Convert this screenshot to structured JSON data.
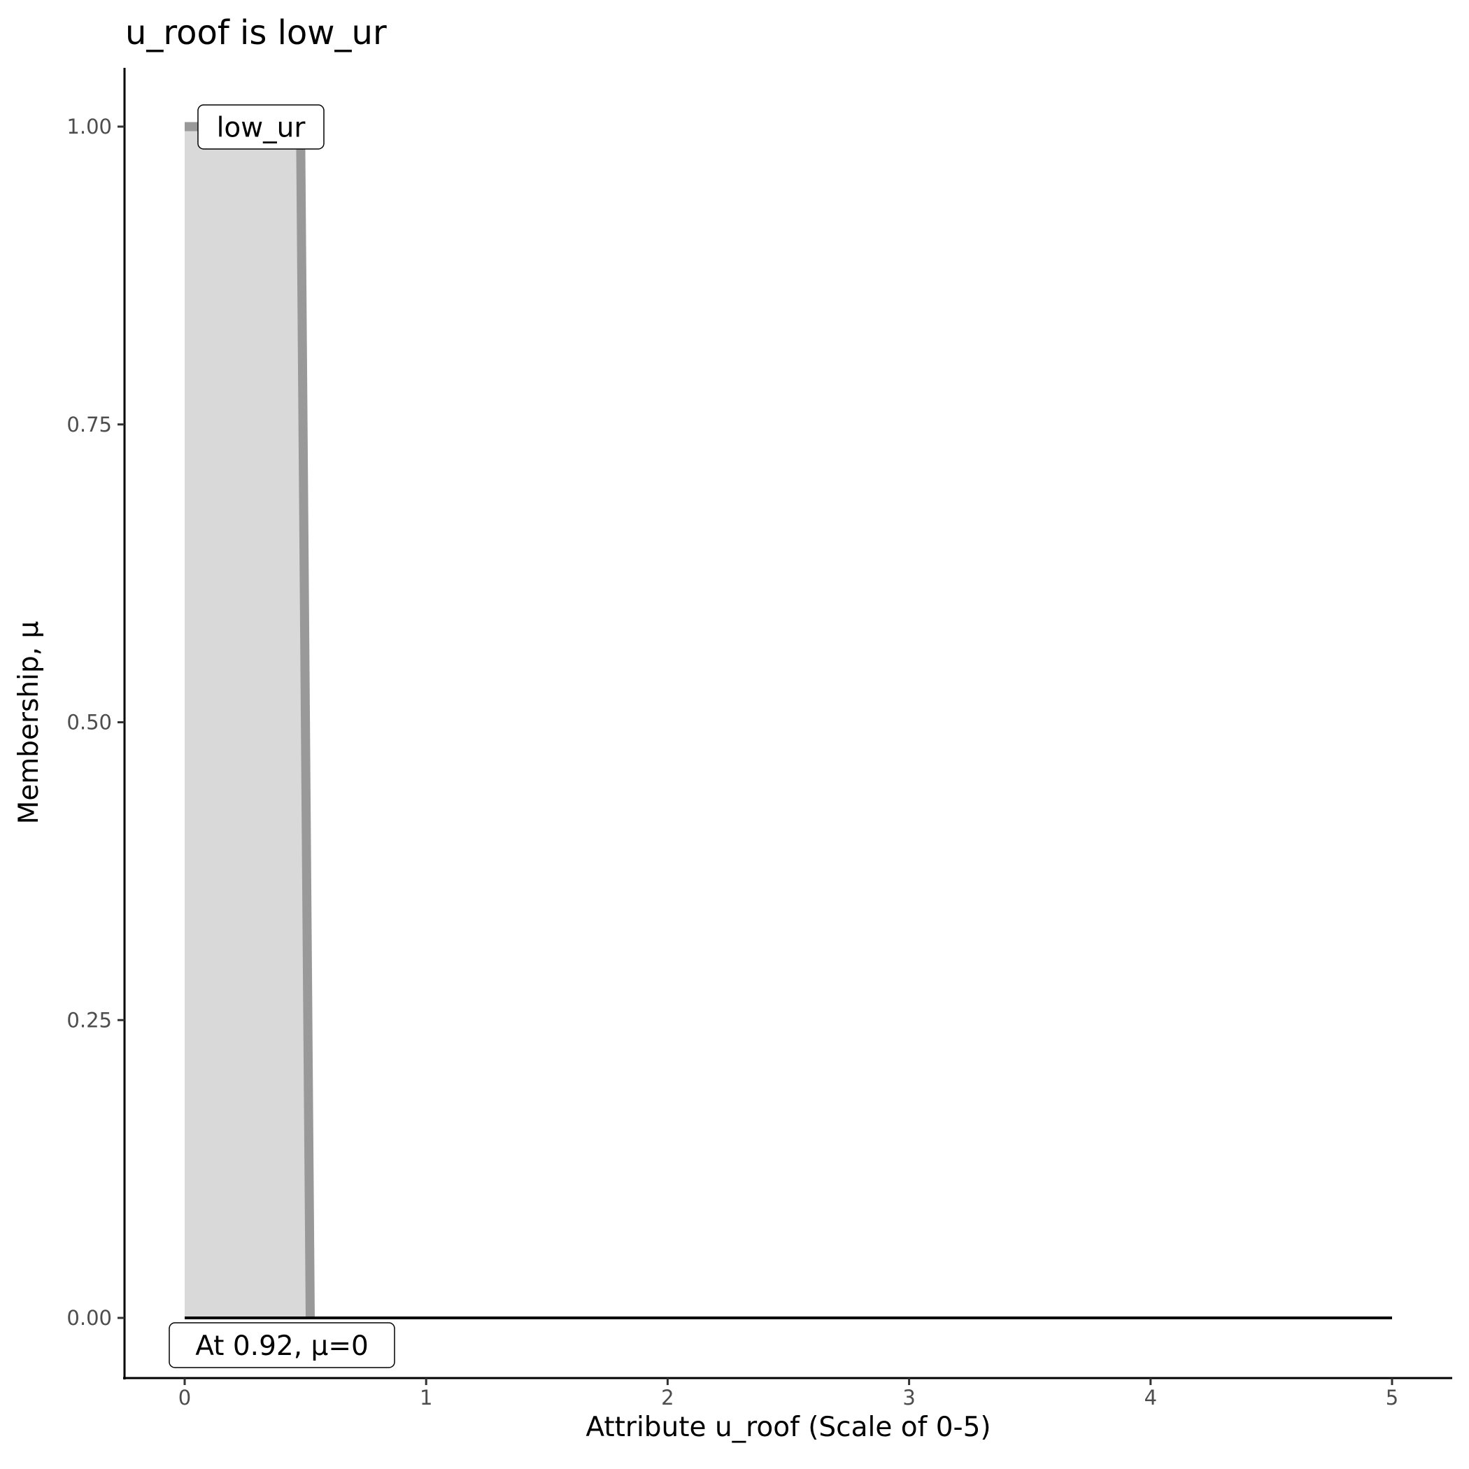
{
  "chart_data": {
    "type": "area",
    "title": "u_roof is low_ur",
    "xlabel": "Attribute u_roof (Scale of 0-5)",
    "ylabel": "Membership, μ",
    "xlim": [
      -0.25,
      5.25
    ],
    "ylim": [
      -0.05,
      1.05
    ],
    "x_ticks": [
      "0",
      "1",
      "2",
      "3",
      "4",
      "5"
    ],
    "y_ticks": [
      "0.00",
      "0.25",
      "0.50",
      "0.75",
      "1.00"
    ],
    "grid": false,
    "series": [
      {
        "name": "low_ur",
        "x": [
          0,
          0.48,
          0.52
        ],
        "y": [
          1,
          1,
          0
        ],
        "color": "#999999",
        "fill": "#d9d9d9"
      },
      {
        "x": [
          0,
          5
        ],
        "y": [
          0,
          0
        ],
        "color": "#000000"
      }
    ],
    "annotations": [
      {
        "text": "low_ur",
        "x": 0.3,
        "y": 1.0
      },
      {
        "text": "At 0.92, μ=0",
        "x": 0.4,
        "y": -0.02
      }
    ]
  }
}
